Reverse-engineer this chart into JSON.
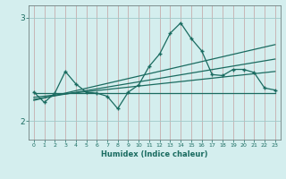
{
  "xlabel": "Humidex (Indice chaleur)",
  "bg_color": "#d4eeee",
  "line_color": "#1a6b60",
  "xlim": [
    -0.5,
    23.5
  ],
  "ylim": [
    1.82,
    3.12
  ],
  "x_ticks": [
    0,
    1,
    2,
    3,
    4,
    5,
    6,
    7,
    8,
    9,
    10,
    11,
    12,
    13,
    14,
    15,
    16,
    17,
    18,
    19,
    20,
    21,
    22,
    23
  ],
  "y_ticks": [
    2,
    3
  ],
  "main_x": [
    0,
    1,
    2,
    3,
    4,
    5,
    6,
    7,
    8,
    9,
    10,
    11,
    12,
    13,
    14,
    15,
    16,
    17,
    18,
    19,
    20,
    21,
    22,
    23
  ],
  "main_y": [
    2.28,
    2.18,
    2.27,
    2.48,
    2.36,
    2.28,
    2.27,
    2.24,
    2.12,
    2.28,
    2.35,
    2.53,
    2.65,
    2.85,
    2.95,
    2.8,
    2.68,
    2.45,
    2.44,
    2.5,
    2.5,
    2.47,
    2.32,
    2.3
  ],
  "trend1_x": [
    0,
    23
  ],
  "trend1_y": [
    2.27,
    2.27
  ],
  "trend2_x": [
    0,
    23
  ],
  "trend2_y": [
    2.23,
    2.48
  ],
  "trend3_x": [
    0,
    23
  ],
  "trend3_y": [
    2.21,
    2.6
  ],
  "trend4_x": [
    0,
    23
  ],
  "trend4_y": [
    2.2,
    2.74
  ],
  "vgrid_color": "#c4a0a0",
  "hgrid_color": "#a0c8c8"
}
